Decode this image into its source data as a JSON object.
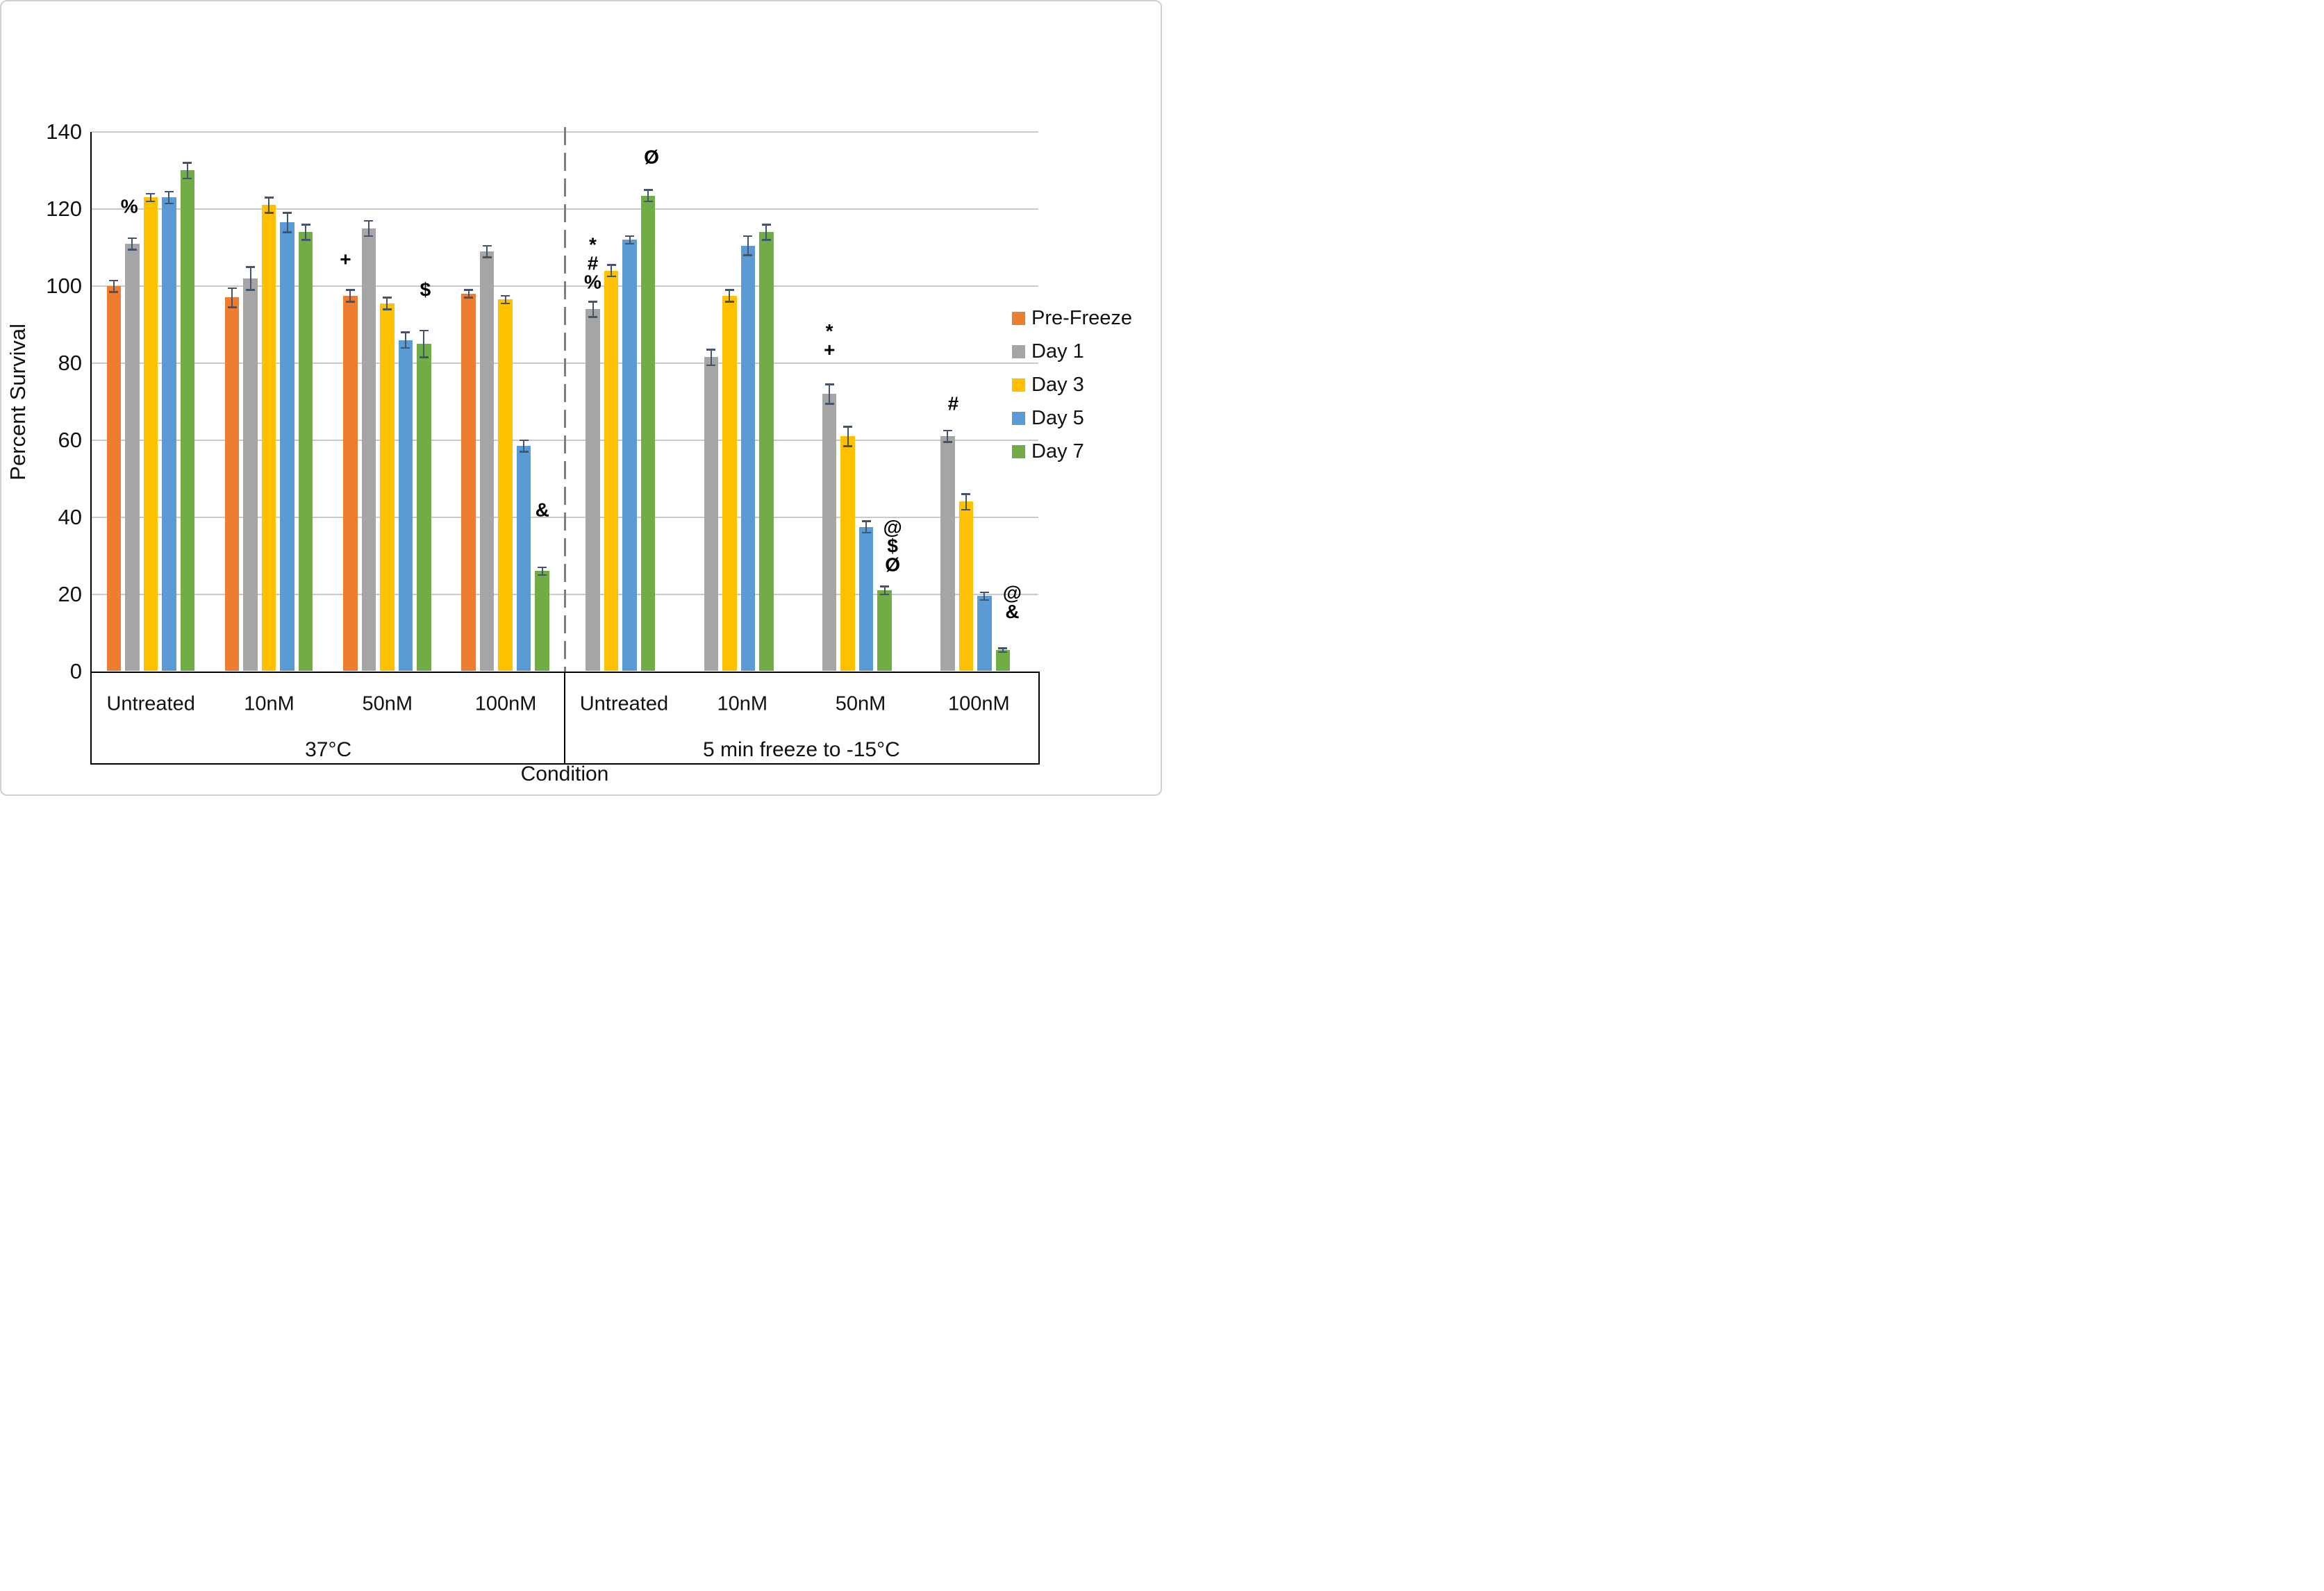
{
  "chart_data": {
    "type": "bar",
    "title": "",
    "ylabel": "Percent Survival",
    "xlabel": "Condition",
    "ylim": [
      0,
      140
    ],
    "yticks": [
      0,
      20,
      40,
      60,
      80,
      100,
      120,
      140
    ],
    "grid": true,
    "legend_position": "right",
    "colors": {
      "gridline": "#c9c9c9",
      "axis": "#000000",
      "error_bar": "#44546a",
      "divider": "#7f7f7f",
      "border": "#cfcfcf"
    },
    "series": [
      {
        "name": "Pre-Freeze",
        "color": "#ED7D31"
      },
      {
        "name": "Day 1",
        "color": "#A5A5A5"
      },
      {
        "name": "Day 3",
        "color": "#FFC000"
      },
      {
        "name": "Day 5",
        "color": "#5B9BD5"
      },
      {
        "name": "Day 7",
        "color": "#70AD47"
      }
    ],
    "conditions": [
      {
        "label": "37°C",
        "groups": [
          {
            "label": "Untreated",
            "values": [
              100,
              111,
              123,
              123,
              130
            ],
            "errors": [
              1.5,
              1.5,
              1,
              1.5,
              2
            ]
          },
          {
            "label": "10nM",
            "values": [
              97,
              102,
              121,
              116.5,
              114
            ],
            "errors": [
              2.5,
              3,
              2,
              2.5,
              2
            ]
          },
          {
            "label": "50nM",
            "values": [
              97.5,
              115,
              95.5,
              86,
              85
            ],
            "errors": [
              1.5,
              2,
              1.5,
              2,
              3.5
            ]
          },
          {
            "label": "100nM",
            "values": [
              98,
              109,
              96.5,
              58.5,
              26
            ],
            "errors": [
              1,
              1.5,
              1,
              1.5,
              1
            ]
          }
        ]
      },
      {
        "label": "5 min freeze to -15°C",
        "groups": [
          {
            "label": "Untreated",
            "values": [
              null,
              94,
              104,
              112,
              123.5
            ],
            "errors": [
              null,
              2,
              1.5,
              1,
              1.5
            ]
          },
          {
            "label": "10nM",
            "values": [
              null,
              81.5,
              97.5,
              110.5,
              114
            ],
            "errors": [
              null,
              2,
              1.5,
              2.5,
              2
            ]
          },
          {
            "label": "50nM",
            "values": [
              null,
              72,
              61,
              37.5,
              21
            ],
            "errors": [
              null,
              2.5,
              2.5,
              1.5,
              1
            ]
          },
          {
            "label": "100nM",
            "values": [
              null,
              61,
              44,
              19.5,
              5.5
            ],
            "errors": [
              null,
              1.5,
              2,
              1,
              0.5
            ]
          }
        ]
      }
    ],
    "annotations": [
      {
        "lines": [
          "%"
        ],
        "condition": 0,
        "group": 0,
        "series": 1,
        "dx": -4,
        "value": 120.7
      },
      {
        "lines": [
          "+"
        ],
        "condition": 0,
        "group": 2,
        "series": 0,
        "dx": -7,
        "value": 107
      },
      {
        "lines": [
          "$"
        ],
        "condition": 0,
        "group": 2,
        "series": 4,
        "dx": 2,
        "value": 99
      },
      {
        "lines": [
          "&"
        ],
        "condition": 0,
        "group": 3,
        "series": 4,
        "dx": 0,
        "value": 42
      },
      {
        "lines": [
          "*",
          "#",
          "%"
        ],
        "condition": 1,
        "group": 0,
        "series": 1,
        "dx": 0,
        "value": 106
      },
      {
        "lines": [
          "Ø"
        ],
        "condition": 1,
        "group": 0,
        "series": 4,
        "dx": 5,
        "value": 133.5
      },
      {
        "lines": [
          "*",
          "+"
        ],
        "condition": 1,
        "group": 2,
        "series": 1,
        "dx": 0,
        "value": 86
      },
      {
        "lines": [
          "@",
          "$",
          "Ø"
        ],
        "condition": 1,
        "group": 2,
        "series": 3,
        "dx": 38,
        "value": 32.5
      },
      {
        "lines": [
          "#"
        ],
        "condition": 1,
        "group": 3,
        "series": 1,
        "dx": 8,
        "value": 69.5
      },
      {
        "lines": [
          "@",
          "&"
        ],
        "condition": 1,
        "group": 3,
        "series": 3,
        "dx": 40,
        "value": 18
      }
    ]
  }
}
